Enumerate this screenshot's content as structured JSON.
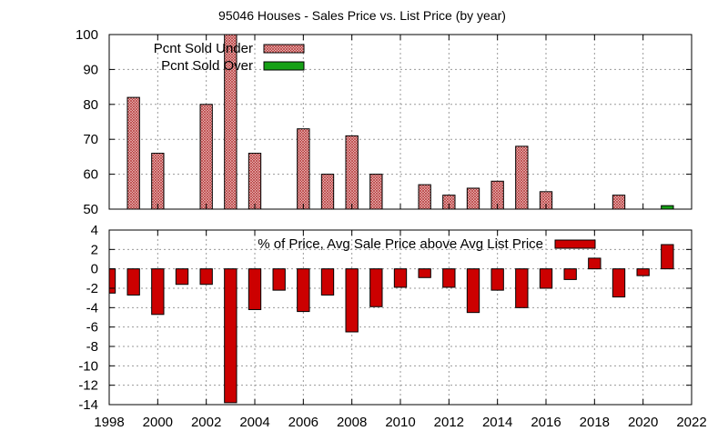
{
  "colors": {
    "under_fill": "#f2c8c8",
    "under_hatch": "#b03030",
    "over_fill": "#16a016",
    "avg_fill": "#cc0000",
    "grid": "#9a9a9a"
  },
  "chart_data": [
    {
      "type": "bar",
      "title": "95046 Houses - Sales Price vs. List Price (by year)",
      "xlim": [
        1998,
        2022
      ],
      "ylim": [
        50,
        100
      ],
      "yticks": [
        50,
        60,
        70,
        80,
        90,
        100
      ],
      "xticks": [
        1998,
        2000,
        2002,
        2004,
        2006,
        2008,
        2010,
        2012,
        2014,
        2016,
        2018,
        2020,
        2022
      ],
      "grid": true,
      "legend_position": "top-left",
      "series": [
        {
          "name": "Pcnt Sold Under",
          "pattern": "crosshatch",
          "points": [
            {
              "x": 1999,
              "y": 82
            },
            {
              "x": 2000,
              "y": 66
            },
            {
              "x": 2002,
              "y": 80
            },
            {
              "x": 2003,
              "y": 100
            },
            {
              "x": 2004,
              "y": 66
            },
            {
              "x": 2006,
              "y": 73
            },
            {
              "x": 2007,
              "y": 60
            },
            {
              "x": 2008,
              "y": 71
            },
            {
              "x": 2009,
              "y": 60
            },
            {
              "x": 2011,
              "y": 57
            },
            {
              "x": 2012,
              "y": 54
            },
            {
              "x": 2013,
              "y": 56
            },
            {
              "x": 2014,
              "y": 58
            },
            {
              "x": 2015,
              "y": 68
            },
            {
              "x": 2016,
              "y": 55
            },
            {
              "x": 2019,
              "y": 54
            }
          ]
        },
        {
          "name": "Pcnt Sold Over",
          "pattern": "solid",
          "points": [
            {
              "x": 2021,
              "y": 51
            }
          ]
        }
      ]
    },
    {
      "type": "bar",
      "xlim": [
        1998,
        2022
      ],
      "ylim": [
        -14,
        4
      ],
      "yticks": [
        -14,
        -12,
        -10,
        -8,
        -6,
        -4,
        -2,
        0,
        2,
        4
      ],
      "xticks": [
        1998,
        2000,
        2002,
        2004,
        2006,
        2008,
        2010,
        2012,
        2014,
        2016,
        2018,
        2020,
        2022
      ],
      "grid": true,
      "legend_position": "top-right",
      "series": [
        {
          "name": "% of Price, Avg Sale Price above Avg List Price",
          "points": [
            {
              "x": 1998,
              "y": -2.5
            },
            {
              "x": 1999,
              "y": -2.7
            },
            {
              "x": 2000,
              "y": -4.7
            },
            {
              "x": 2001,
              "y": -1.6
            },
            {
              "x": 2002,
              "y": -1.6
            },
            {
              "x": 2003,
              "y": -13.8
            },
            {
              "x": 2004,
              "y": -4.2
            },
            {
              "x": 2005,
              "y": -2.2
            },
            {
              "x": 2006,
              "y": -4.4
            },
            {
              "x": 2007,
              "y": -2.7
            },
            {
              "x": 2008,
              "y": -6.5
            },
            {
              "x": 2009,
              "y": -3.9
            },
            {
              "x": 2010,
              "y": -1.9
            },
            {
              "x": 2011,
              "y": -0.9
            },
            {
              "x": 2012,
              "y": -1.9
            },
            {
              "x": 2013,
              "y": -4.5
            },
            {
              "x": 2014,
              "y": -2.2
            },
            {
              "x": 2015,
              "y": -4.0
            },
            {
              "x": 2016,
              "y": -2.0
            },
            {
              "x": 2017,
              "y": -1.1
            },
            {
              "x": 2018,
              "y": 1.1
            },
            {
              "x": 2019,
              "y": -2.9
            },
            {
              "x": 2020,
              "y": -0.7
            },
            {
              "x": 2021,
              "y": 2.5
            }
          ]
        }
      ]
    }
  ]
}
